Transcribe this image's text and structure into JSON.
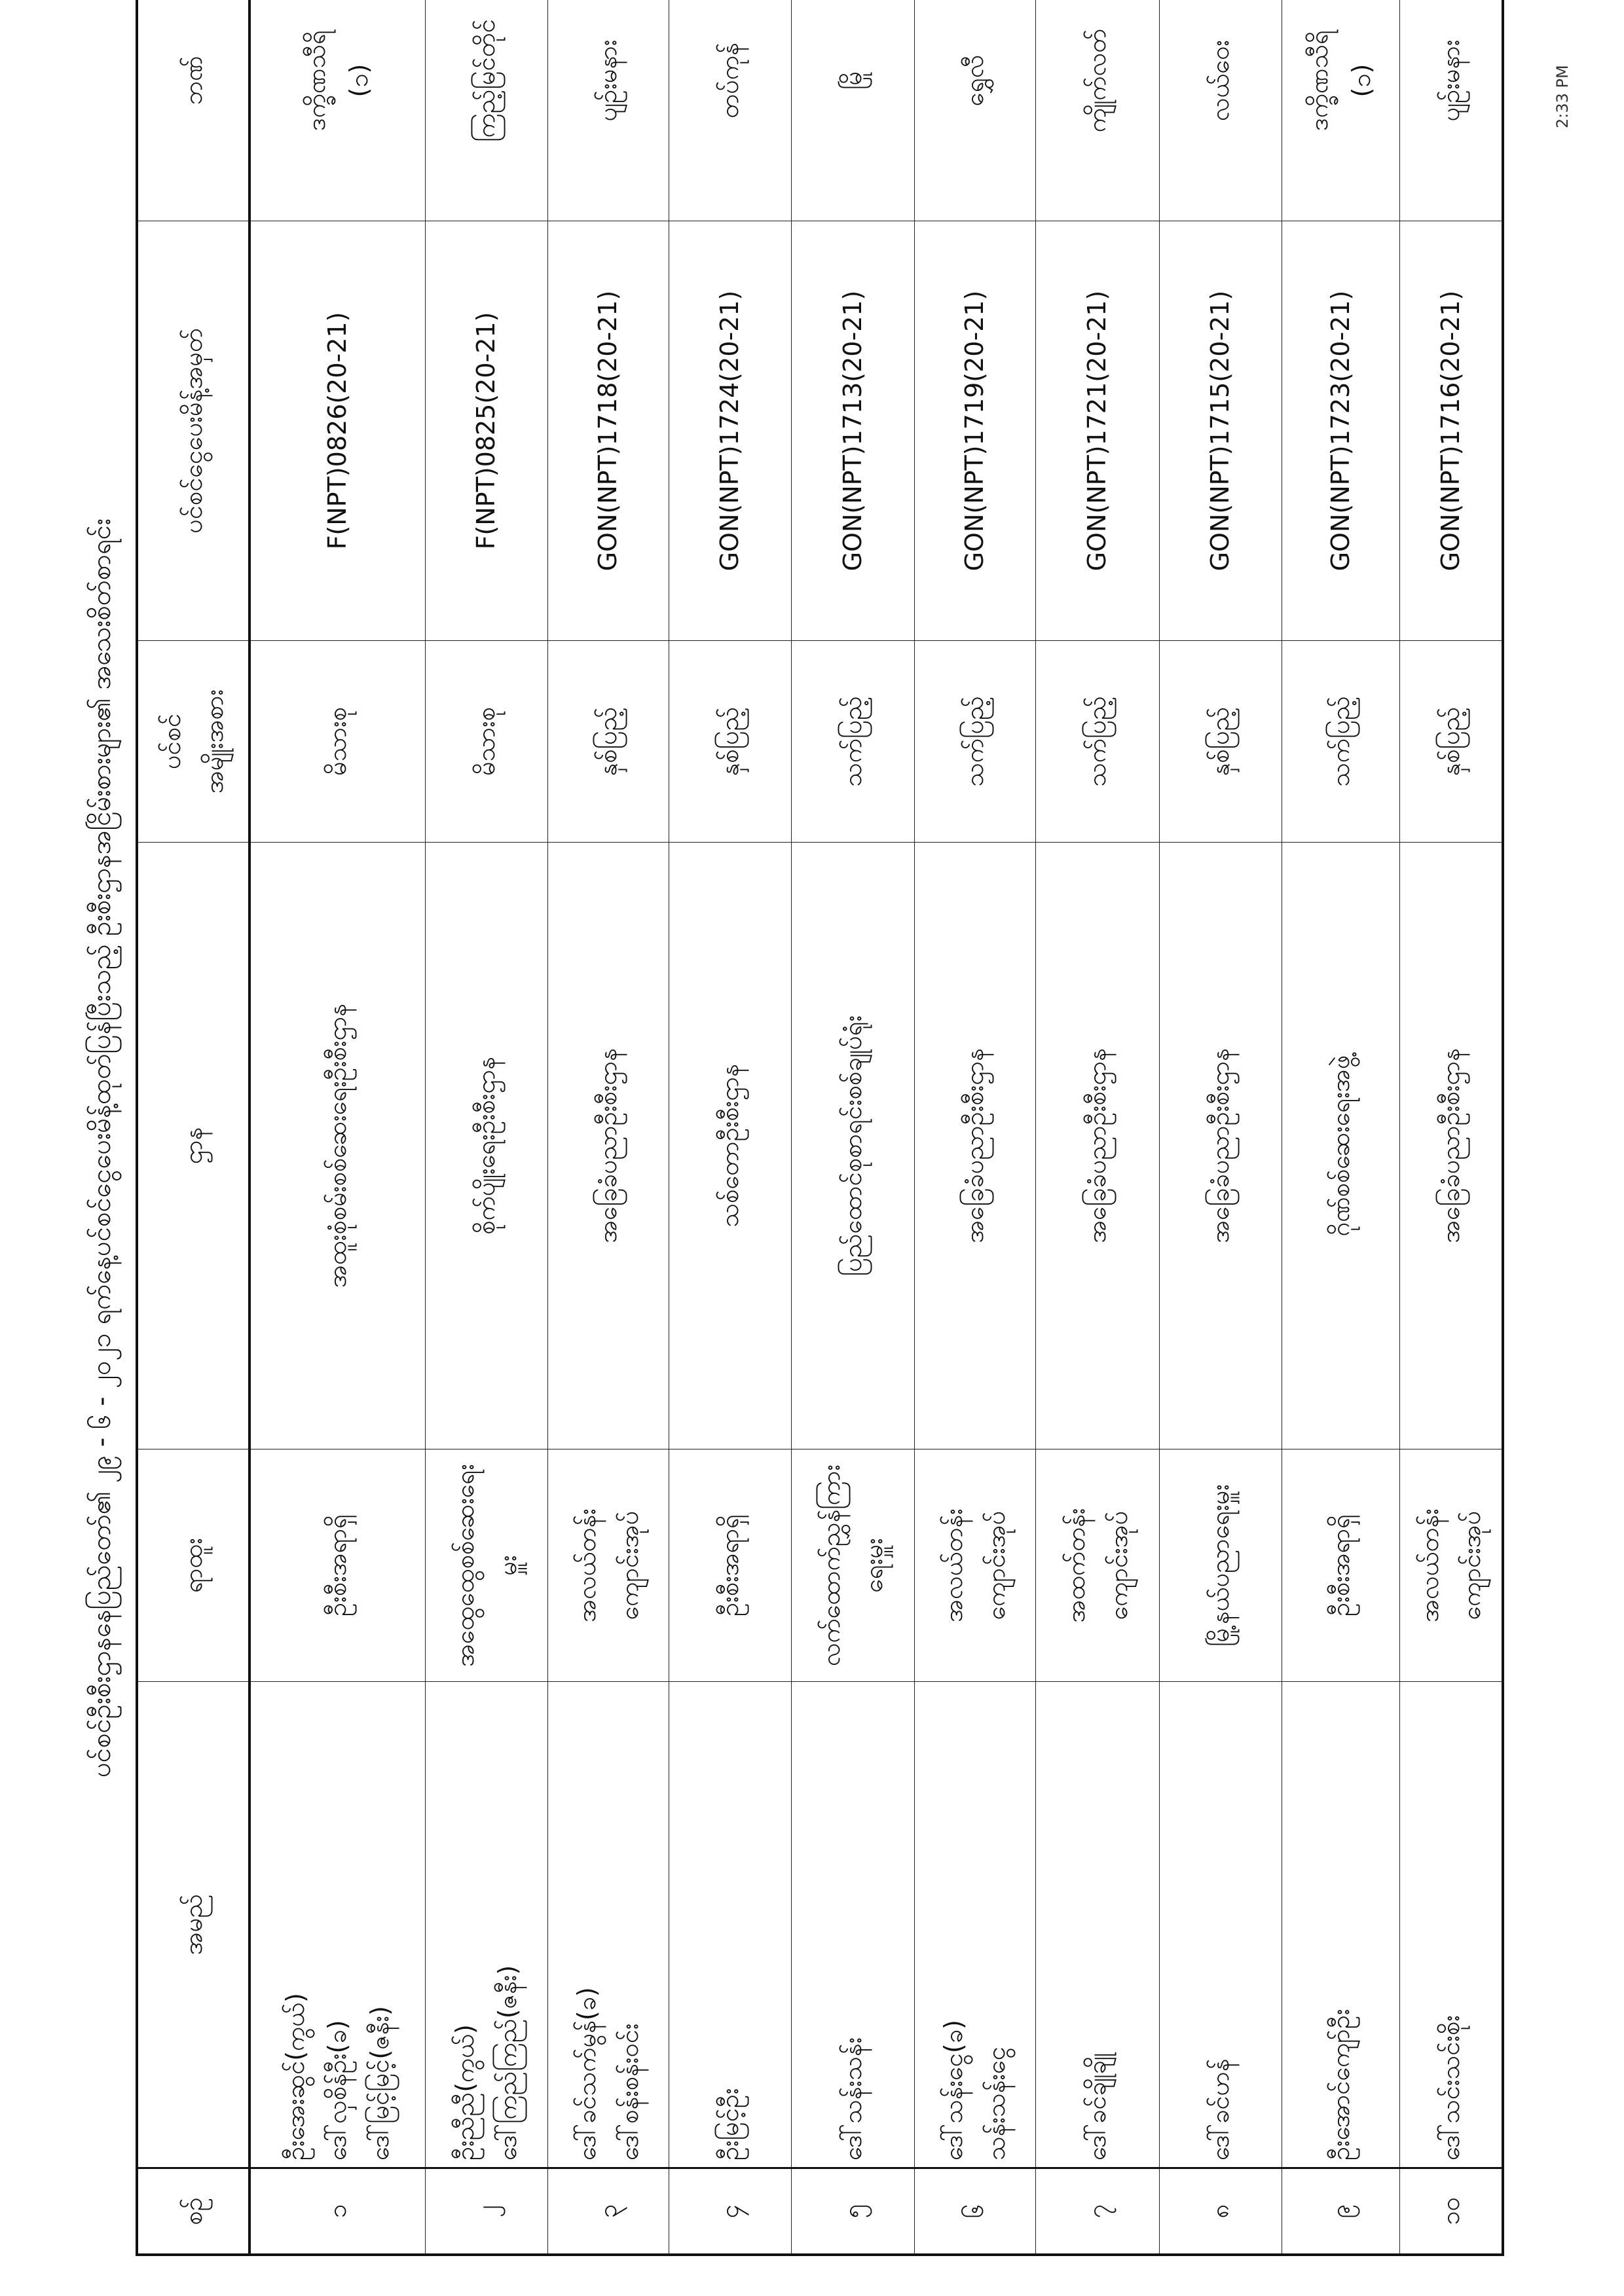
{
  "title": "ပင်စင်ဦးစီးဌာနနေပြည်တော်၏ ၂၉ - ၆ - ၂၀၂၁ ရက်နေ့ပင်စင်ငွေပေးမိန့်ထုတ်ပြန်ပြီးသည့် ဦးစီးဌာနအငြိမ်းစားများ၏ အသေးစိတ်စာရင်း",
  "clock": "2:33 PM",
  "headers": {
    "no": "စဉ်",
    "name": "အမည်",
    "position": "ရာထူး",
    "department": "ဌာန",
    "pension_type": "ပင်စင်\nအမျိုးအစား",
    "pension_id": "ပင်စင်ငွေပေးမိန့်အမှတ်",
    "bank": "ဘဏ်"
  },
  "rows": [
    {
      "no": "၁",
      "name": "ဦးအေးဆွင်(ကွယ်)\nဒေါ်လှစိန်ဦး(ခ)\nဒေါ်မြင့်မြင့်(ဇနီး)",
      "position": "ဦးစီးအရာရှိ",
      "department": "အထူးစုံစမ်းစစ်ဆေးရေးဦးစီးဌာန",
      "pension_type": "မိသားစု",
      "pension_id": "F(NPT)0826(20-21)",
      "bank": "ဒက္ခိဏသီရိ\n(၁)"
    },
    {
      "no": "၂",
      "name": "ဦးညီညီ(ကွယ်)\nဒေါ်ကြည်ကြည်(ဇနီး)",
      "position": "အထွေထွေစစ်ဆေးရေးမှူး",
      "department": "စိုက်ပျိုးရေးဦးစီးဌာန",
      "pension_type": "မိသားစု",
      "pension_id": "F(NPT)0825(20-21)",
      "bank": "ကြည့်မြင်တိုင်"
    },
    {
      "no": "၃",
      "name": "ဒေါ်ခင်သက်မွန်(ခ)\nဒေါ်စန်းစန်းဝင်း",
      "position": "အလယ်တန်း\nကျောင်းအုပ်",
      "department": "အခြေခံပညာဦးစီးဌာန",
      "pension_type": "နှစ်ပြည့်",
      "pension_id": "GON(NPT)1718(20-21)",
      "bank": "ပျဉ်းမနား"
    },
    {
      "no": "၄",
      "name": "ဦးမြင့်ဦး",
      "position": "ဦးစီးအရာရှိ",
      "department": "သစ်တောဦးစီးဌာန",
      "pension_type": "နှစ်ပြည့်",
      "pension_id": "GON(NPT)1724(20-21)",
      "bank": "တပ်ကုန်"
    },
    {
      "no": "၅",
      "name": "ဒေါ်သန်းသန်း",
      "position": "လက်ထောက်ညွှန်ကြားရေးမှူး",
      "department": "ပြည်ထောင်စုစာရင်းစစ်ချုပ်ရုံး",
      "pension_type": "သက်ပြည့်",
      "pension_id": "GON(NPT)1713(20-21)",
      "bank": "မြို"
    },
    {
      "no": "၆",
      "name": "ဒေါ်သန်းငွေ(ခ)\nသန်းသန်းငွေ",
      "position": "အလယ်တန်း\nကျောင်းအုပ်",
      "department": "အခြေခံပညာဦးစီးဌာန",
      "pension_type": "သက်ပြည့်",
      "pension_id": "GON(NPT)1719(20-21)",
      "bank": "ရွှေလီ"
    },
    {
      "no": "၇",
      "name": "ဒေါ်ခင်ချိုချို",
      "position": "အထက်တန်း\nကျောင်းအုပ်",
      "department": "အခြေခံပညာဦးစီးဌာန",
      "pension_type": "သက်ပြည့်",
      "pension_id": "GON(NPT)1721(20-21)",
      "bank": "ကျိုက်လတ်"
    },
    {
      "no": "၈",
      "name": "ဒေါ်ခင်ဟန်",
      "position": "မြို့နယ်ပညာရေးမှူး",
      "department": "အခြေခံပညာဦးစီးဌာန",
      "pension_type": "နှစ်ပြည့်",
      "pension_id": "GON(NPT)1715(20-21)",
      "bank": "လယ်ဝေး"
    },
    {
      "no": "၉",
      "name": "ဦးအောင်ကျော်ဦး",
      "position": "ဦးစီးအရာရှိ",
      "department": "ဂိုဏ်စစ်ဆေးရေးအဖွဲ့",
      "pension_type": "သက်ပြည့်",
      "pension_id": "GON(NPT)1723(20-21)",
      "bank": "ဒက္ခိဏသီရိ\n(၁)"
    },
    {
      "no": "၁၀",
      "name": "ဒေါ်သင်းသင်းစိုး",
      "position": "အလယ်တန်း\nကျောင်းအုပ်",
      "department": "အခြေခံပညာဦးစီးဌာန",
      "pension_type": "နှစ်ပြည့်",
      "pension_id": "GON(NPT)1716(20-21)",
      "bank": "ပျဉ်းမနား"
    }
  ]
}
